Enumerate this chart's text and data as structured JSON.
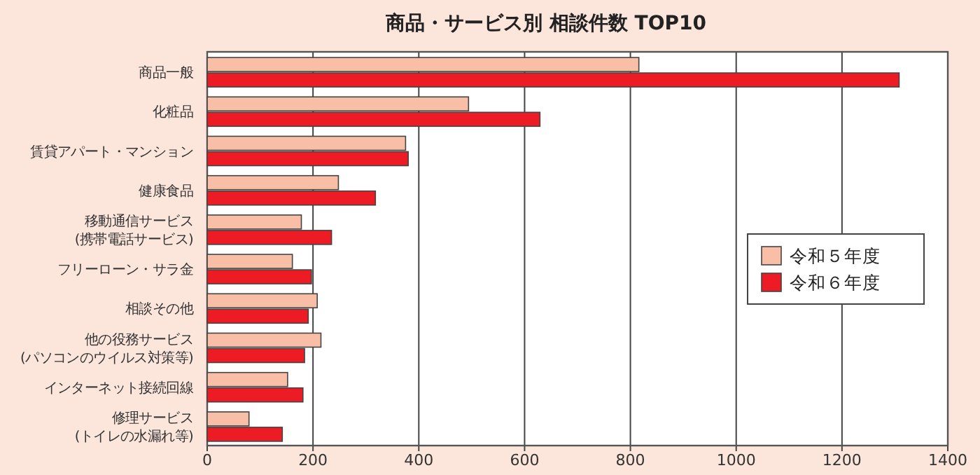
{
  "chart_data": {
    "type": "bar",
    "orientation": "horizontal",
    "title": "商品・サービス別 相談件数 TOP10",
    "categories": [
      "商品一般",
      "化粧品",
      "賃貸アパート・マンション",
      "健康食品",
      "移動通信サービス\n(携帯電話サービス)",
      "フリーローン・サラ金",
      "相談その他",
      "他の役務サービス\n(パソコンのウイルス対策等)",
      "インターネット接続回線",
      "修理サービス\n(トイレの水漏れ等)"
    ],
    "series": [
      {
        "name": "令和５年度",
        "color": "#f9bfa6",
        "values": [
          816,
          494,
          375,
          248,
          178,
          161,
          208,
          215,
          152,
          79
        ]
      },
      {
        "name": "令和６年度",
        "color": "#ed1c24",
        "values": [
          1308,
          629,
          380,
          318,
          235,
          197,
          191,
          184,
          181,
          142
        ]
      }
    ],
    "xlim": [
      0,
      1400
    ],
    "xticks": [
      0,
      200,
      400,
      600,
      800,
      1000,
      1200,
      1400
    ],
    "grid": "x",
    "legend": "right"
  }
}
